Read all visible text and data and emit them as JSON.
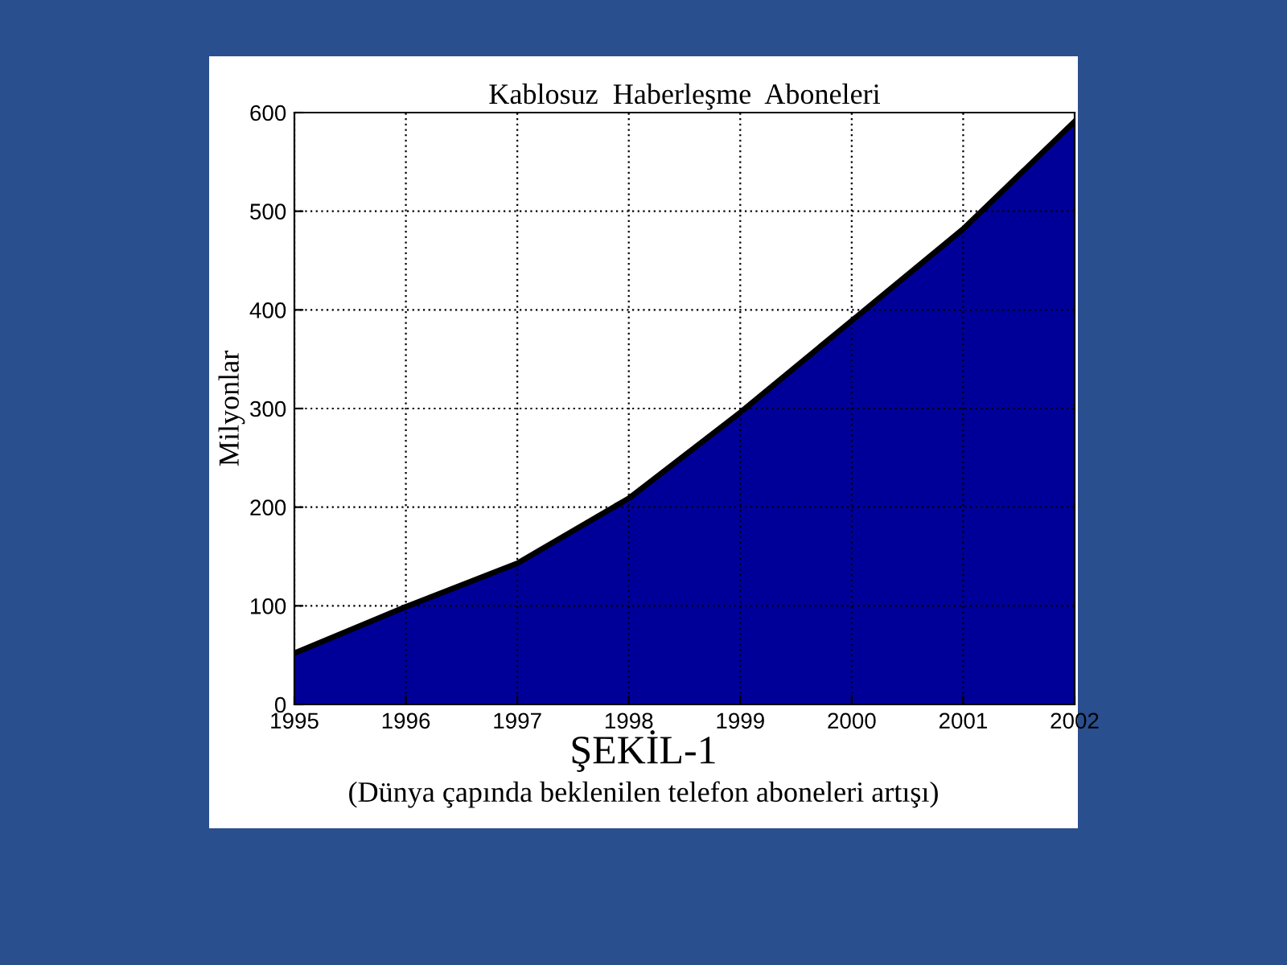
{
  "chart_data": {
    "type": "area",
    "title": "Kablosuz  Haberleşme  Aboneleri",
    "ylabel": "Milyonlar",
    "x": [
      1995,
      1996,
      1997,
      1998,
      1999,
      2000,
      2001,
      2002
    ],
    "series": [
      {
        "color": "#000099",
        "values": [
          52,
          99,
          143,
          209,
          296,
          389,
          482,
          591
        ]
      }
    ],
    "xlim": [
      1995,
      2002
    ],
    "xticks": [
      1995,
      1996,
      1997,
      1998,
      1999,
      2000,
      2001,
      2002
    ],
    "ylim": [
      0,
      600
    ],
    "yticks": [
      0,
      100,
      200,
      300,
      400,
      500,
      600
    ],
    "grid": true,
    "line_style": "dotted",
    "annotations": [
      "ŞEKİL-1",
      "(Dünya çapında beklenilen telefon aboneleri artışı)"
    ]
  }
}
